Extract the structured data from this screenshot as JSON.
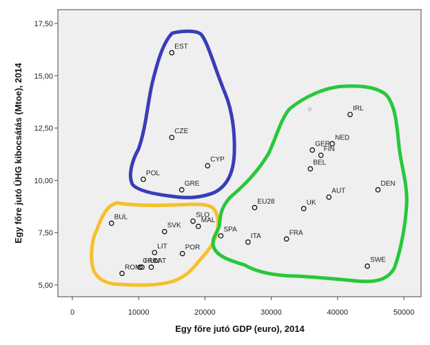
{
  "chart_data": {
    "type": "scatter",
    "xlabel": "Egy főre jutó GDP (euro), 2014",
    "ylabel": "Egy főre jutó ÜHG kibocsátás (Mtoe), 2014",
    "xlim": [
      0,
      50000
    ],
    "ylim": [
      5.0,
      17.5
    ],
    "x_ticks": [
      {
        "value": 0,
        "label": "0"
      },
      {
        "value": 10000,
        "label": "10000"
      },
      {
        "value": 20000,
        "label": "20000"
      },
      {
        "value": 30000,
        "label": "30000"
      },
      {
        "value": 40000,
        "label": "40000"
      },
      {
        "value": 50000,
        "label": "50000"
      }
    ],
    "y_ticks": [
      {
        "value": 5.0,
        "label": "5,00"
      },
      {
        "value": 7.5,
        "label": "7,50"
      },
      {
        "value": 10.0,
        "label": "10,00"
      },
      {
        "value": 12.5,
        "label": "12,50"
      },
      {
        "value": 15.0,
        "label": "15,00"
      },
      {
        "value": 17.5,
        "label": "17,50"
      }
    ],
    "grid": false,
    "points": [
      {
        "label": "EST",
        "x": 15000,
        "y": 16.1
      },
      {
        "label": "CZE",
        "x": 15000,
        "y": 12.05
      },
      {
        "label": "CYP",
        "x": 20400,
        "y": 10.7
      },
      {
        "label": "POL",
        "x": 10700,
        "y": 10.05
      },
      {
        "label": "GRE",
        "x": 16500,
        "y": 9.55
      },
      {
        "label": "BUL",
        "x": 5900,
        "y": 7.95
      },
      {
        "label": "SLO",
        "x": 18200,
        "y": 8.05
      },
      {
        "label": "SVK",
        "x": 13900,
        "y": 7.55
      },
      {
        "label": "MAL",
        "x": 19000,
        "y": 7.8
      },
      {
        "label": "SPA",
        "x": 22400,
        "y": 7.35
      },
      {
        "label": "LIT",
        "x": 12400,
        "y": 6.55
      },
      {
        "label": "POR",
        "x": 16600,
        "y": 6.5
      },
      {
        "label": "HUN",
        "x": 10500,
        "y": 5.85
      },
      {
        "label": "ROM",
        "x": 7500,
        "y": 5.55
      },
      {
        "label": "CRO",
        "x": 10200,
        "y": 5.85
      },
      {
        "label": "LAT",
        "x": 11900,
        "y": 5.85
      },
      {
        "label": "IRL",
        "x": 41900,
        "y": 13.15
      },
      {
        "label": "NED",
        "x": 39200,
        "y": 11.75
      },
      {
        "label": "GER",
        "x": 36200,
        "y": 11.45
      },
      {
        "label": "FIN",
        "x": 37500,
        "y": 11.2
      },
      {
        "label": "BEL",
        "x": 35900,
        "y": 10.55
      },
      {
        "label": "DEN",
        "x": 46100,
        "y": 9.55
      },
      {
        "label": "AUT",
        "x": 38700,
        "y": 9.2
      },
      {
        "label": "EU28",
        "x": 27500,
        "y": 8.7
      },
      {
        "label": "UK",
        "x": 34900,
        "y": 8.65
      },
      {
        "label": "FRA",
        "x": 32300,
        "y": 7.2
      },
      {
        "label": "ITA",
        "x": 26500,
        "y": 7.05
      },
      {
        "label": "SWE",
        "x": 44500,
        "y": 5.9
      }
    ],
    "unlabeled_points": [
      {
        "x": 35800,
        "y": 13.4
      }
    ],
    "clusters": [
      {
        "color": "#3a3db8",
        "members": [
          "EST",
          "CZE",
          "CYP",
          "POL",
          "GRE"
        ]
      },
      {
        "color": "#f5c12a",
        "members": [
          "BUL",
          "SLO",
          "SVK",
          "MAL",
          "SPA",
          "LIT",
          "POR",
          "HUN",
          "ROM",
          "CRO",
          "LAT"
        ]
      },
      {
        "color": "#27c83a",
        "members": [
          "IRL",
          "NED",
          "GER",
          "FIN",
          "BEL",
          "DEN",
          "AUT",
          "EU28",
          "UK",
          "FRA",
          "ITA",
          "SWE"
        ]
      }
    ],
    "colors": {
      "plot_background": "#efefef",
      "point_stroke": "#000000"
    }
  }
}
